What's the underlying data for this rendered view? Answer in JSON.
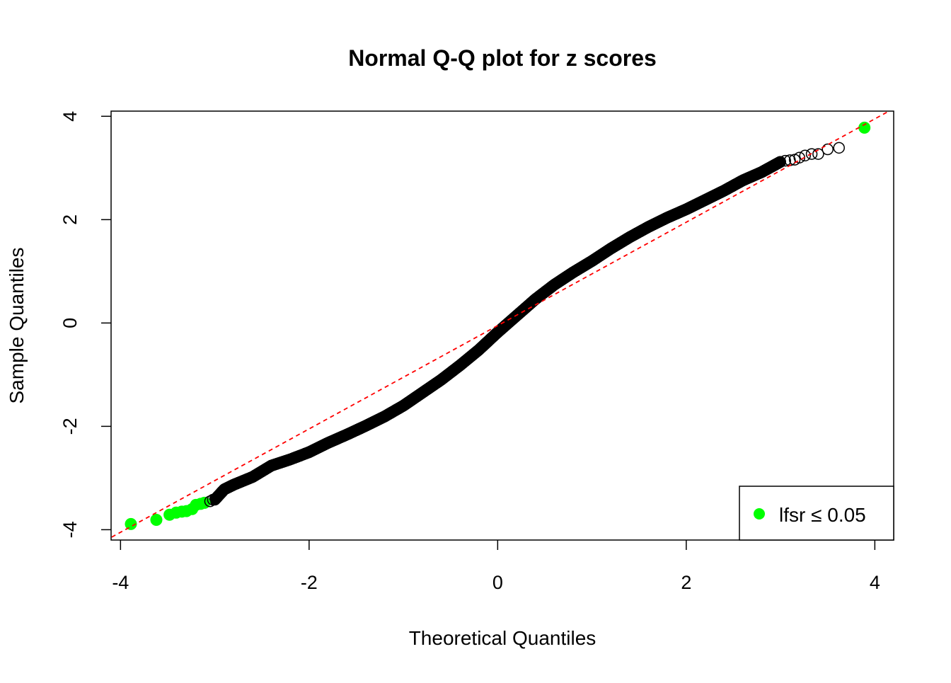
{
  "chart_data": {
    "type": "scatter",
    "title": "Normal Q-Q plot for z scores",
    "xlabel": "Theoretical Quantiles",
    "ylabel": "Sample Quantiles",
    "xlim": [
      -4.1,
      4.2
    ],
    "ylim": [
      -4.2,
      4.1
    ],
    "xticks": [
      -4,
      -2,
      0,
      2,
      4
    ],
    "yticks": [
      -4,
      -2,
      0,
      2,
      4
    ],
    "xtick_labels": [
      "-4",
      "-2",
      "0",
      "2",
      "4"
    ],
    "ytick_labels": [
      "-4",
      "-2",
      "0",
      "2",
      "4"
    ],
    "grid": false,
    "legend_position": "bottom-right",
    "reference_line": {
      "slope": 1.0,
      "intercept": -0.05,
      "color": "#ff0000",
      "style": "dashed"
    },
    "curve_points": [
      [
        -3.0,
        -3.42
      ],
      [
        -2.9,
        -3.22
      ],
      [
        -2.8,
        -3.13
      ],
      [
        -2.6,
        -2.98
      ],
      [
        -2.4,
        -2.76
      ],
      [
        -2.2,
        -2.64
      ],
      [
        -2.0,
        -2.5
      ],
      [
        -1.8,
        -2.32
      ],
      [
        -1.6,
        -2.16
      ],
      [
        -1.4,
        -1.99
      ],
      [
        -1.2,
        -1.81
      ],
      [
        -1.0,
        -1.6
      ],
      [
        -0.8,
        -1.35
      ],
      [
        -0.6,
        -1.1
      ],
      [
        -0.4,
        -0.82
      ],
      [
        -0.2,
        -0.52
      ],
      [
        0.0,
        -0.18
      ],
      [
        0.2,
        0.14
      ],
      [
        0.4,
        0.46
      ],
      [
        0.6,
        0.74
      ],
      [
        0.8,
        0.98
      ],
      [
        1.0,
        1.2
      ],
      [
        1.2,
        1.44
      ],
      [
        1.4,
        1.66
      ],
      [
        1.6,
        1.86
      ],
      [
        1.8,
        2.04
      ],
      [
        2.0,
        2.2
      ],
      [
        2.2,
        2.38
      ],
      [
        2.4,
        2.56
      ],
      [
        2.6,
        2.76
      ],
      [
        2.8,
        2.92
      ],
      [
        2.9,
        3.02
      ],
      [
        3.0,
        3.12
      ]
    ],
    "series": [
      {
        "name": "lfsr ≤ 0.05",
        "color": "#00ff00",
        "marker": "filled-circle",
        "points": [
          [
            -3.89,
            -3.89
          ],
          [
            -3.62,
            -3.81
          ],
          [
            -3.48,
            -3.71
          ],
          [
            -3.41,
            -3.67
          ],
          [
            -3.35,
            -3.65
          ],
          [
            -3.3,
            -3.64
          ],
          [
            -3.24,
            -3.6
          ],
          [
            -3.2,
            -3.52
          ],
          [
            -3.15,
            -3.5
          ],
          [
            -3.11,
            -3.48
          ],
          [
            3.89,
            3.78
          ]
        ]
      },
      {
        "name": "",
        "color": "#000000",
        "marker": "open-circle",
        "points": [
          [
            -3.05,
            -3.45
          ],
          [
            -3.02,
            -3.42
          ],
          [
            3.05,
            3.14
          ],
          [
            3.1,
            3.15
          ],
          [
            3.15,
            3.16
          ],
          [
            3.2,
            3.2
          ],
          [
            3.26,
            3.24
          ],
          [
            3.33,
            3.27
          ],
          [
            3.4,
            3.27
          ],
          [
            3.5,
            3.36
          ],
          [
            3.62,
            3.39
          ]
        ]
      }
    ],
    "legend": {
      "label": "lfsr  ≤ 0.05",
      "marker_color": "#00ff00"
    }
  }
}
